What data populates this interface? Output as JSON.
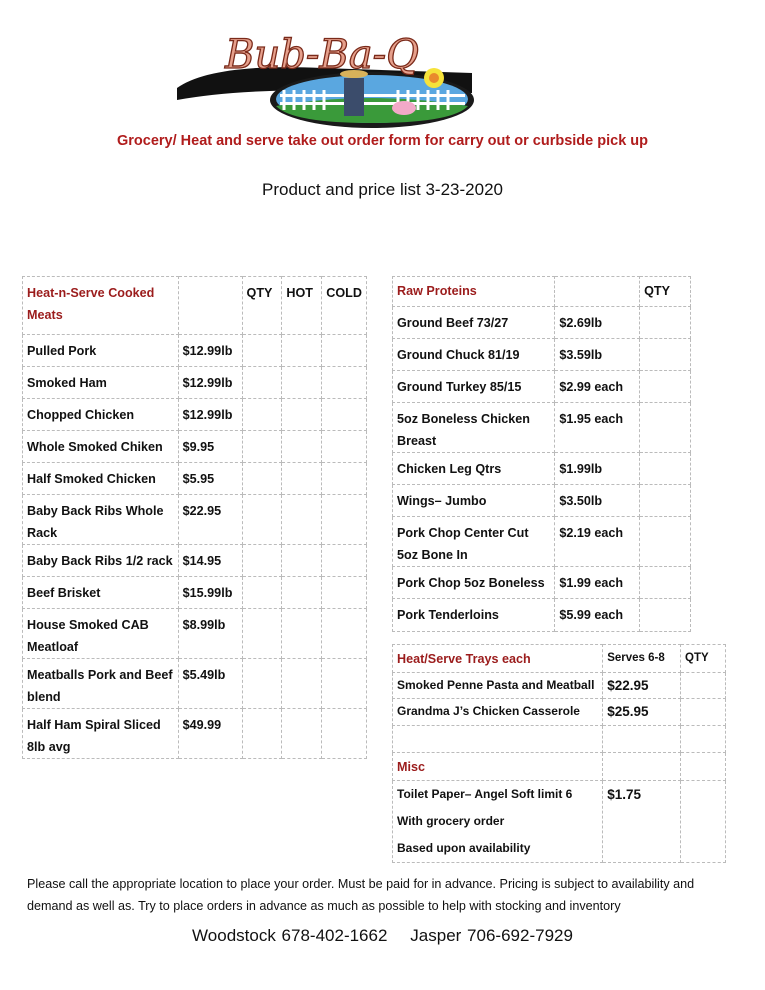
{
  "logo": {
    "text": "Bub-Ba-Q"
  },
  "subtitle": "Grocery/ Heat and serve take out order form for carry out or curbside pick up",
  "price_list_title": "Product and price list 3-23-2020",
  "cooked_meats": {
    "header": "Heat-n-Serve Cooked Meats",
    "qty": "QTY",
    "hot": "HOT",
    "cold": "COLD",
    "rows": [
      {
        "name": "Pulled Pork",
        "price": "$12.99lb"
      },
      {
        "name": "Smoked Ham",
        "price": "$12.99lb"
      },
      {
        "name": "Chopped Chicken",
        "price": "$12.99lb"
      },
      {
        "name": "Whole Smoked Chiken",
        "price": "$9.95"
      },
      {
        "name": "Half Smoked Chicken",
        "price": "$5.95"
      },
      {
        "name": "Baby Back Ribs Whole Rack",
        "price": "$22.95"
      },
      {
        "name": "Baby Back Ribs 1/2 rack",
        "price": "$14.95"
      },
      {
        "name": "Beef Brisket",
        "price": "$15.99lb"
      },
      {
        "name": "House Smoked CAB Meatloaf",
        "price": "$8.99lb"
      },
      {
        "name": "Meatballs  Pork and Beef blend",
        "price": "$5.49lb"
      },
      {
        "name": "Half Ham Spiral Sliced 8lb avg",
        "price": "$49.99"
      }
    ]
  },
  "raw_proteins": {
    "header": "Raw Proteins",
    "qty": "QTY",
    "rows": [
      {
        "name": "Ground Beef 73/27",
        "price": "$2.69lb"
      },
      {
        "name": "Ground Chuck 81/19",
        "price": "$3.59lb"
      },
      {
        "name": "Ground Turkey 85/15",
        "price": "$2.99 each"
      },
      {
        "name": "5oz Boneless Chicken Breast",
        "price": "$1.95 each"
      },
      {
        "name": "Chicken Leg Qtrs",
        "price": "$1.99lb"
      },
      {
        "name": "Wings– Jumbo",
        "price": "$3.50lb"
      },
      {
        "name": "Pork Chop Center Cut 5oz Bone In",
        "price": "$2.19 each"
      },
      {
        "name": "Pork Chop 5oz Boneless",
        "price": "$1.99 each"
      },
      {
        "name": "Pork Tenderloins",
        "price": "$5.99 each"
      }
    ]
  },
  "trays": {
    "header": "Heat/Serve Trays each",
    "serves": "Serves 6-8",
    "qty": "QTY",
    "rows": [
      {
        "name": "Smoked Penne Pasta and Meatball",
        "price": "$22.95"
      },
      {
        "name": "Grandma J’s Chicken Casserole",
        "price": "$25.95"
      }
    ],
    "misc_header": "Misc",
    "misc_lines": [
      "Toilet Paper– Angel Soft limit 6",
      "With grocery order",
      "Based upon availability"
    ],
    "misc_price": "$1.75"
  },
  "footer": "Please call the appropriate location to place your order. Must be paid for in advance. Pricing is subject to availability and demand as well as. Try to place orders in advance as much as possible to help with stocking and inventory",
  "phones": "Woodstock 678-402-1662    Jasper 706-692-7929",
  "colors": {
    "heading_red": "#9b1c1c",
    "subtitle_red": "#b01c1c"
  }
}
